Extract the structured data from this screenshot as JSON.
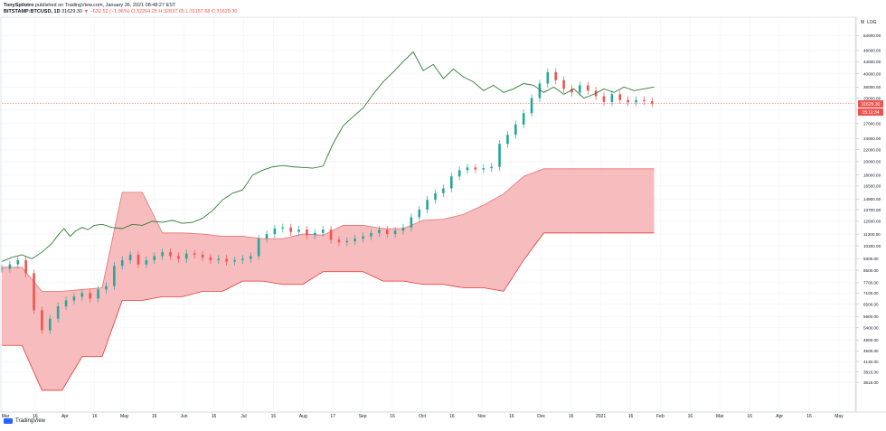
{
  "header": {
    "author": "TonySpilotro",
    "published": "published on TradingView.com, January 26, 2021 08:48:27 EST",
    "symbol": "BITSTAMP:BTCUSD, 1D",
    "last_close": "31629.30",
    "change": "▼ −632.52 (−1.96%)",
    "open": "O:32264.25",
    "high": "H:32837.65",
    "low": "L:31157.68",
    "close": "C:31629.30"
  },
  "axis": {
    "m_label": "M",
    "log_label": "LOG",
    "price_badge": "31629.30",
    "countdown_badge": "15:11:34"
  },
  "footer": {
    "brand": "TradingView"
  },
  "chart_data": {
    "type": "line",
    "yscale": "log",
    "ylim": [
      2800,
      62000
    ],
    "y_ticks": [
      "54000.00",
      "48000.00",
      "44000.00",
      "40000.00",
      "36000.00",
      "33000.00",
      "30000.00",
      "27000.00",
      "24000.00",
      "22000.00",
      "20000.00",
      "18000.00",
      "16500.00",
      "14900.00",
      "13700.00",
      "12500.00",
      "11300.00",
      "10300.00",
      "9300.00",
      "8500.00",
      "7700.00",
      "7100.00",
      "6500.00",
      "5900.00",
      "5400.00",
      "4900.00",
      "4500.00",
      "4140.00",
      "3815.00",
      "3515.00"
    ],
    "x_tick_labels": [
      "Mar",
      "16",
      "Apr",
      "16",
      "May",
      "16",
      "Jun",
      "16",
      "Jul",
      "16",
      "Aug",
      "17",
      "Sep",
      "16",
      "Oct",
      "16",
      "Nov",
      "16",
      "Dec",
      "16",
      "2021",
      "16",
      "Feb",
      "16",
      "Mar",
      "16",
      "Apr",
      "16",
      "May"
    ],
    "last_price": 31629.3,
    "series": [
      {
        "type": "line",
        "color": "#2e7d32",
        "x": [
          0,
          5,
          10,
          15,
          20,
          25,
          28,
          31,
          34,
          37,
          40,
          43,
          46,
          50,
          55,
          60,
          65,
          70,
          75,
          80,
          85,
          90,
          95,
          100,
          105,
          110,
          115,
          120,
          125,
          130,
          135,
          140,
          145,
          150,
          155,
          160,
          165,
          170,
          175,
          180,
          185,
          190,
          195,
          200,
          205,
          210,
          215,
          220,
          225,
          230,
          235,
          240,
          245,
          250,
          255,
          260,
          265,
          270,
          275,
          280,
          285,
          290,
          295,
          300,
          305,
          310,
          315,
          320,
          325
        ],
        "y": [
          9100,
          9400,
          9600,
          9300,
          9800,
          10500,
          11200,
          11800,
          11100,
          11600,
          11900,
          11700,
          12100,
          12200,
          11900,
          11800,
          12200,
          12100,
          12500,
          12400,
          12600,
          12300,
          12400,
          12800,
          13600,
          14800,
          15600,
          16000,
          18000,
          18700,
          19200,
          19400,
          19200,
          19100,
          19000,
          19300,
          23000,
          26500,
          28500,
          30500,
          34000,
          37500,
          40500,
          44000,
          47500,
          41000,
          43000,
          38500,
          41500,
          39000,
          37500,
          35000,
          36500,
          34500,
          35500,
          37000,
          36500,
          34500,
          36000,
          34000,
          35500,
          33000,
          34000,
          35500,
          34500,
          36000,
          35000,
          35500,
          36000
        ]
      },
      {
        "type": "candles",
        "up_color": "#26a69a",
        "down_color": "#ef5350",
        "x": [
          0,
          4,
          8,
          12,
          16,
          20,
          24,
          28,
          32,
          36,
          40,
          44,
          48,
          52,
          56,
          60,
          64,
          68,
          72,
          76,
          80,
          84,
          88,
          92,
          96,
          100,
          104,
          108,
          112,
          116,
          120,
          124,
          128,
          132,
          136,
          140,
          144,
          148,
          152,
          156,
          160,
          164,
          168,
          172,
          176,
          180,
          184,
          188,
          192,
          196,
          200,
          204,
          208,
          212,
          216,
          220,
          224,
          228,
          232,
          236,
          240,
          244,
          248,
          252,
          256,
          260,
          264,
          268,
          272,
          276,
          280,
          284,
          288,
          292,
          296,
          300,
          304,
          308,
          312,
          316,
          320,
          324
        ],
        "y": [
          8600,
          8900,
          9200,
          8300,
          6200,
          5300,
          5800,
          6400,
          6700,
          6900,
          7100,
          6800,
          7300,
          7500,
          8800,
          9200,
          9600,
          8900,
          9200,
          9500,
          9800,
          9500,
          9300,
          9700,
          9600,
          9400,
          9200,
          9300,
          9100,
          9200,
          9300,
          9500,
          10900,
          11300,
          11800,
          11900,
          11500,
          11700,
          11200,
          11400,
          11700,
          10800,
          10600,
          10700,
          10900,
          11100,
          11400,
          11700,
          11300,
          11600,
          11900,
          12900,
          13700,
          14800,
          15600,
          16200,
          17800,
          18700,
          19100,
          18800,
          19000,
          19200,
          23000,
          24700,
          26800,
          29300,
          33000,
          37000,
          40500,
          38000,
          35500,
          34500,
          36500,
          35000,
          33500,
          32000,
          34000,
          32500,
          31900,
          32500,
          32200,
          31629.3
        ]
      }
    ],
    "bands": [
      {
        "name": "",
        "color": "#f6b0b3",
        "x": [
          0,
          10,
          20,
          30,
          40,
          50,
          60,
          70,
          80,
          90,
          100,
          110,
          120,
          130,
          140,
          150,
          160,
          170,
          180,
          190,
          200,
          210,
          220,
          230,
          240,
          250,
          260,
          270,
          280,
          290,
          300,
          310,
          320,
          325
        ],
        "upper": [
          8700,
          8700,
          7200,
          7200,
          7300,
          7400,
          15700,
          15700,
          11400,
          11400,
          11300,
          11100,
          11100,
          10900,
          10900,
          11300,
          11200,
          12100,
          12100,
          11800,
          11800,
          12600,
          12700,
          13200,
          14200,
          15500,
          17800,
          18900,
          18900,
          18900,
          18900,
          18900,
          18900,
          18900
        ],
        "lower": [
          4700,
          4700,
          3300,
          3300,
          4300,
          4300,
          6700,
          6700,
          6900,
          6900,
          7200,
          7200,
          7800,
          7800,
          7600,
          7600,
          8400,
          8400,
          8400,
          7800,
          7800,
          7600,
          7600,
          7400,
          7400,
          7200,
          9200,
          11400,
          11400,
          11400,
          11400,
          11400,
          11400,
          11400
        ]
      }
    ]
  }
}
